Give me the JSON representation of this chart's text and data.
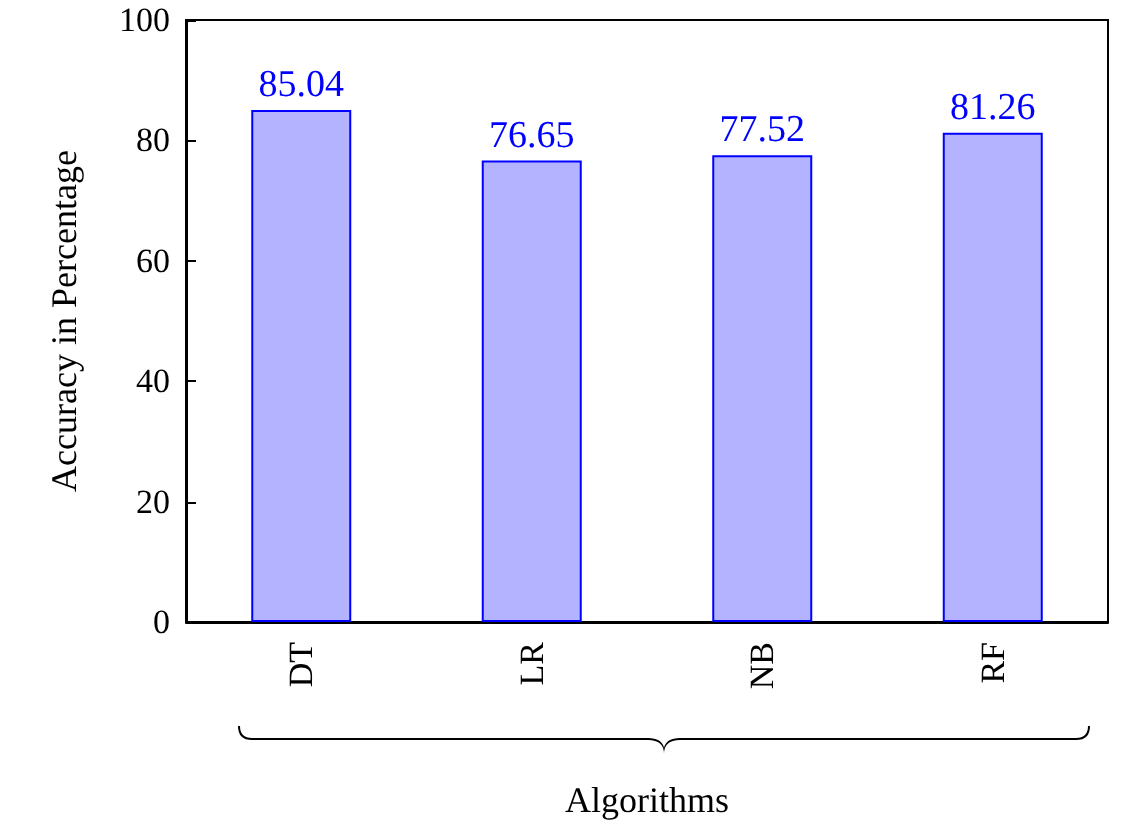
{
  "chart_data": {
    "type": "bar",
    "categories": [
      "DT",
      "LR",
      "NB",
      "RF"
    ],
    "values": [
      85.04,
      76.65,
      77.52,
      81.26
    ],
    "color": "#b3b3ff",
    "data_labels": true,
    "xlabel": "Algorithms",
    "ylabel": "Accuracy in Percentage",
    "ylim": [
      0,
      100
    ],
    "yticks": [
      0,
      20,
      40,
      60,
      80,
      100
    ],
    "grid": false
  }
}
